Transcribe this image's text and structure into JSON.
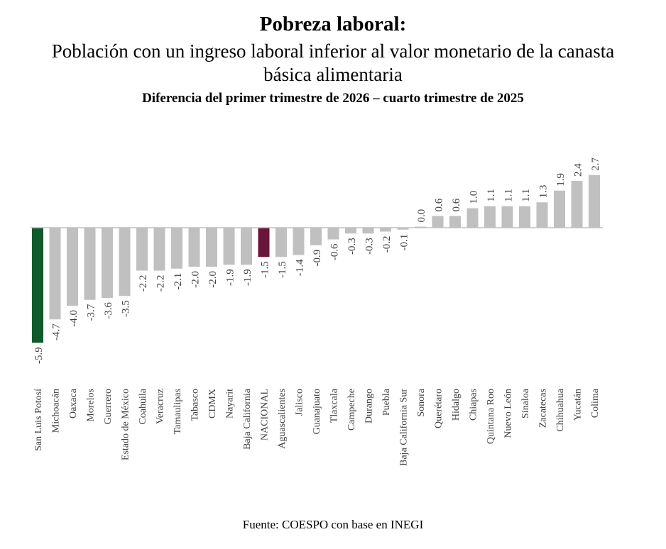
{
  "header": {
    "title": "Pobreza laboral:",
    "subtitle": "Población con un ingreso laboral inferior al valor monetario de la canasta básica alimentaria",
    "period": "Diferencia del primer trimestre de 2026 – cuarto trimestre de 2025"
  },
  "source": "Fuente: COESPO con base en INEGI",
  "colors": {
    "default_bar": "#c0c0c0",
    "highlight_state": "#0f5a2a",
    "national": "#6a1638",
    "axis": "#bfbfbf"
  },
  "chart_data": {
    "type": "bar",
    "title": "Pobreza laboral:",
    "categories": [
      "San Luis Potosí",
      "Michoacán",
      "Oaxaca",
      "Morelos",
      "Guerrero",
      "Estado de México",
      "Coahuila",
      "Veracruz",
      "Tamaulipas",
      "Tabasco",
      "CDMX",
      "Nayarit",
      "Baja California",
      "NACIONAL",
      "Aguascalientes",
      "Jalisco",
      "Guanajuato",
      "Tlaxcala",
      "Campeche",
      "Durango",
      "Puebla",
      "Baja California Sur",
      "Sonora",
      "Querétaro",
      "Hidalgo",
      "Chiapas",
      "Quintana Roo",
      "Nuevo León",
      "Sinaloa",
      "Zacatecas",
      "Chihuahua",
      "Yucatán",
      "Colima"
    ],
    "values": [
      -5.9,
      -4.7,
      -4.0,
      -3.7,
      -3.6,
      -3.5,
      -2.2,
      -2.2,
      -2.1,
      -2.0,
      -2.0,
      -1.9,
      -1.9,
      -1.5,
      -1.5,
      -1.4,
      -0.9,
      -0.6,
      -0.3,
      -0.3,
      -0.2,
      -0.1,
      0.0,
      0.6,
      0.6,
      1.0,
      1.1,
      1.1,
      1.1,
      1.3,
      1.9,
      2.4,
      2.7
    ],
    "value_labels": [
      "-5.9",
      "-4.7",
      "-4.0",
      "-3.7",
      "-3.6",
      "-3.5",
      "-2.2",
      "-2.2",
      "-2.1",
      "-2.0",
      "-2.0",
      "-1.9",
      "-1.9",
      "-1.5",
      "-1.5",
      "-1.4",
      "-0.9",
      "-0.6",
      "-0.3",
      "-0.3",
      "-0.2",
      "-0.1",
      "0.0",
      "0.6",
      "0.6",
      "1.0",
      "1.1",
      "1.1",
      "1.1",
      "1.3",
      "1.9",
      "2.4",
      "2.7"
    ],
    "highlight": {
      "San Luis Potosí": "#0f5a2a",
      "NACIONAL": "#6a1638"
    },
    "ylim": [
      -5.9,
      2.7
    ],
    "grid": false,
    "legend": "none"
  }
}
